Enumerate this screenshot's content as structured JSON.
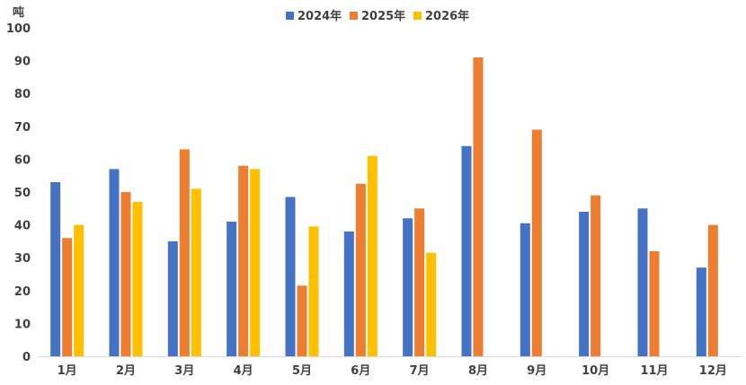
{
  "chart_data": {
    "type": "bar",
    "unit_label": "吨",
    "categories": [
      "1月",
      "2月",
      "3月",
      "4月",
      "5月",
      "6月",
      "7月",
      "8月",
      "9月",
      "10月",
      "11月",
      "12月"
    ],
    "series": [
      {
        "name": "2024年",
        "color": "#4472C4",
        "values": [
          53,
          57,
          35,
          41,
          48.5,
          38,
          42,
          64,
          40.5,
          44,
          45,
          27
        ]
      },
      {
        "name": "2025年",
        "color": "#ED7D31",
        "values": [
          36,
          50,
          63,
          58,
          21.5,
          52.5,
          45,
          91,
          69,
          49,
          32,
          40
        ]
      },
      {
        "name": "2026年",
        "color": "#FFC000",
        "values": [
          40,
          47,
          51,
          57,
          39.5,
          61,
          31.5,
          null,
          null,
          null,
          null,
          null
        ]
      }
    ],
    "ylim": [
      0,
      100
    ],
    "yticks": [
      0,
      10,
      20,
      30,
      40,
      50,
      60,
      70,
      80,
      90,
      100
    ],
    "grid": false,
    "legend_position": "top-center"
  }
}
